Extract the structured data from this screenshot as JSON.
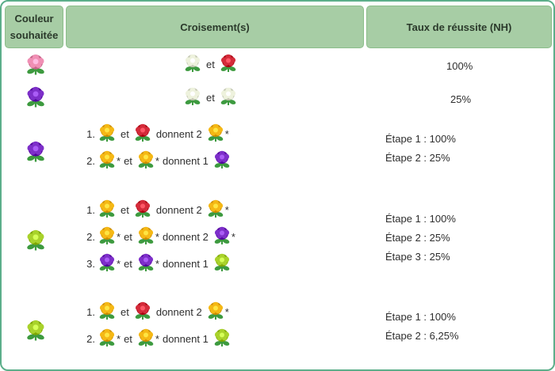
{
  "header": {
    "col1_line1": "Couleur",
    "col1_line2": "souhaitée",
    "col2": "Croisement(s)",
    "col3": "Taux de réussite (NH)"
  },
  "colors": {
    "pink": "#f08fb4",
    "white": "#eef2dd",
    "red": "#d42b3a",
    "purple": "#7d2fc9",
    "yellow": "#f5b815",
    "green": "#a9d22b",
    "leaf": "#3d9a3f",
    "border": "#5cae8a",
    "header_bg": "#a7cda5"
  },
  "words": {
    "and": "et",
    "give": "donnent",
    "give1": "donnent 1",
    "give2": "donnent 2",
    "star": "*"
  },
  "rows": [
    {
      "target": "pink-flower",
      "cross": [
        {
          "a": "white-flower",
          "word": "et",
          "b": "red-flower"
        }
      ],
      "rates": [
        "100%"
      ]
    },
    {
      "target": "purple-flower",
      "cross": [
        {
          "a": "white-flower",
          "word": "et",
          "b": "white-flower"
        }
      ],
      "rates": [
        "25%"
      ]
    },
    {
      "target": "purple-flower",
      "cross": [
        {
          "n": "1.",
          "a": "yellow-flower",
          "b": "red-flower",
          "give": "donnent 2",
          "c": "yellow-flower"
        },
        {
          "n": "2.",
          "a": "yellow-flower",
          "b": "yellow-flower",
          "give": "donnent 1",
          "c": "purple-flower"
        }
      ],
      "rates": [
        "Étape 1 : 100%",
        "Étape 2 : 25%"
      ]
    },
    {
      "target": "green-flower",
      "cross": [
        {
          "n": "1.",
          "a": "yellow-flower",
          "b": "red-flower",
          "give": "donnent 2",
          "c": "yellow-flower"
        },
        {
          "n": "2.",
          "a": "yellow-flower",
          "b": "yellow-flower",
          "give": "donnent 2",
          "c": "purple-flower"
        },
        {
          "n": "3.",
          "a": "purple-flower",
          "b": "purple-flower",
          "give": "donnent 1",
          "c": "green-flower"
        }
      ],
      "rates": [
        "Étape 1 : 100%",
        "Étape 2 : 25%",
        "Étape 3 : 25%"
      ]
    },
    {
      "target": "green-flower",
      "cross": [
        {
          "n": "1.",
          "a": "yellow-flower",
          "b": "red-flower",
          "give": "donnent 2",
          "c": "yellow-flower"
        },
        {
          "n": "2.",
          "a": "yellow-flower",
          "b": "yellow-flower",
          "give": "donnent 1",
          "c": "green-flower"
        }
      ],
      "rates": [
        "Étape 1 : 100%",
        "Étape 2 : 6,25%"
      ]
    }
  ]
}
